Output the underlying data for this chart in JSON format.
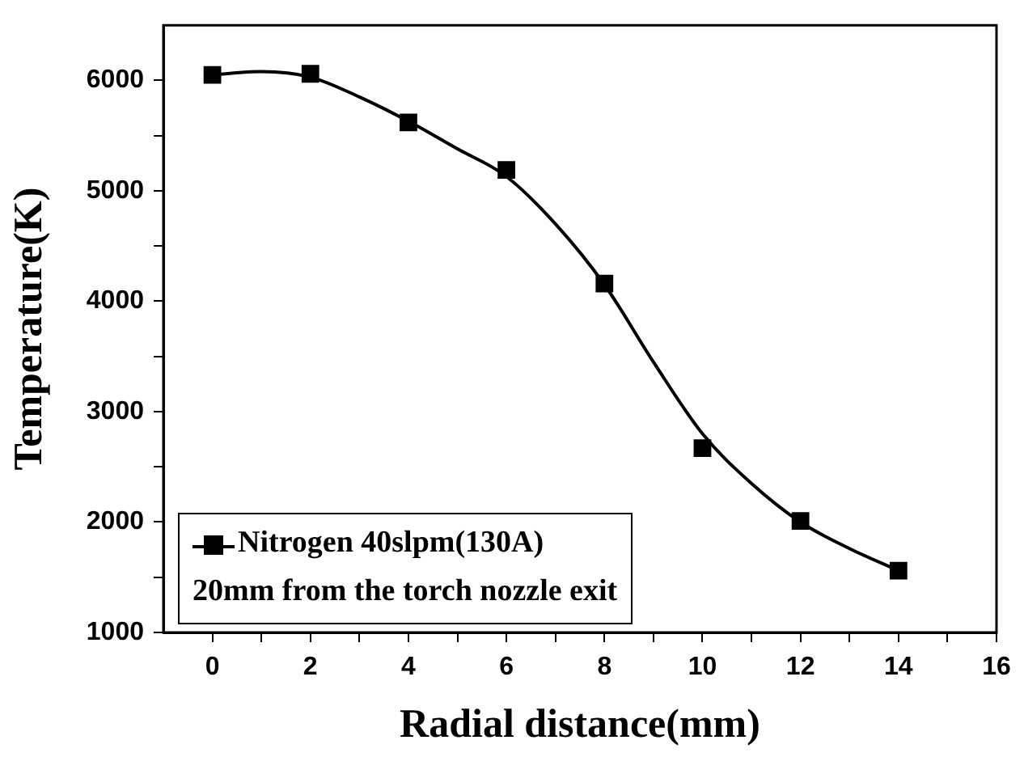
{
  "chart_data": {
    "type": "scatter",
    "xlabel": "Radial distance(mm)",
    "ylabel": "Temperature(K)",
    "xlim": [
      -1,
      16
    ],
    "ylim": [
      1000,
      6500
    ],
    "xticks": [
      0,
      {
        "value": 1,
        "label": null
      },
      2,
      {
        "value": 3,
        "label": null
      },
      4,
      {
        "value": 5,
        "label": null
      },
      6,
      {
        "value": 7,
        "label": null
      },
      8,
      {
        "value": 9,
        "label": null
      },
      10,
      {
        "value": 11,
        "label": null
      },
      12,
      {
        "value": 13,
        "label": null
      },
      14,
      {
        "value": 15,
        "label": null
      },
      16
    ],
    "yticks": [
      1000,
      {
        "value": 1500,
        "label": null
      },
      2000,
      {
        "value": 2500,
        "label": null
      },
      3000,
      {
        "value": 3500,
        "label": null
      },
      4000,
      {
        "value": 4500,
        "label": null
      },
      5000,
      {
        "value": 5500,
        "label": null
      },
      6000
    ],
    "grid": false,
    "legend": "bottom left",
    "marker": "square",
    "series": [
      {
        "name": "Nitrogen 40slpm(130A)",
        "color": "#000000",
        "x": [
          0,
          2,
          4,
          6,
          8,
          10,
          12,
          14
        ],
        "values": [
          6050,
          6060,
          5620,
          5190,
          4160,
          2670,
          2010,
          1560
        ]
      },
      {
        "type": "line",
        "color": "#000000",
        "marker": "none",
        "line_style": "solid",
        "x": [
          0,
          0.5,
          1,
          2,
          3,
          4,
          5,
          6,
          7,
          8,
          9,
          10,
          11,
          12,
          13,
          14
        ],
        "values": [
          6050,
          6070,
          6080,
          6030,
          5850,
          5630,
          5380,
          5130,
          4700,
          4150,
          3450,
          2800,
          2350,
          2000,
          1760,
          1560
        ]
      }
    ],
    "annotations": [
      "20mm from the torch nozzle exit"
    ]
  }
}
